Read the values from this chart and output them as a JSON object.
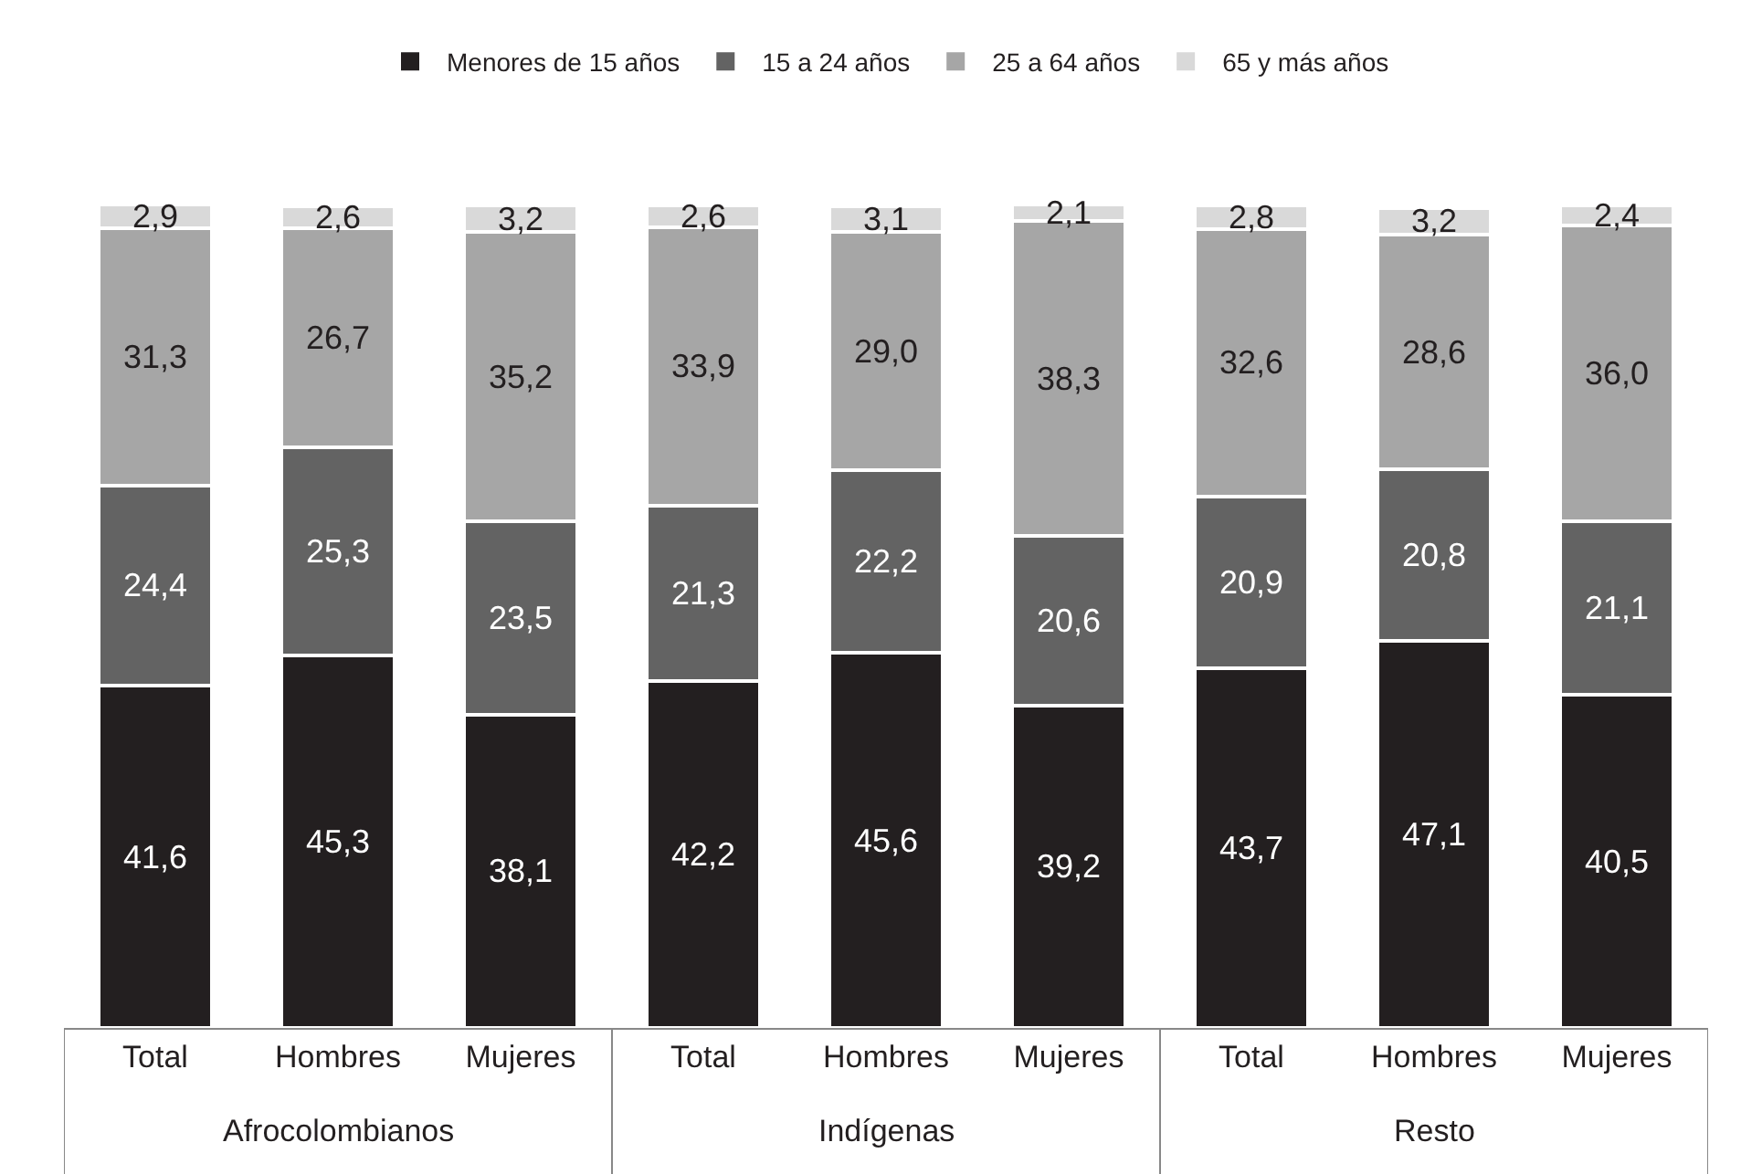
{
  "chart_data": {
    "type": "bar",
    "stacked": true,
    "legend": "top",
    "categories": [
      "Total",
      "Hombres",
      "Mujeres",
      "Total",
      "Hombres",
      "Mujeres",
      "Total",
      "Hombres",
      "Mujeres"
    ],
    "annotations": [
      "Afrocolombianos",
      "Indígenas",
      "Resto"
    ],
    "series": [
      {
        "name": "Menores de 15 años",
        "color": "#231f20",
        "values": [
          41.6,
          45.3,
          38.1,
          42.2,
          45.6,
          39.2,
          43.7,
          47.1,
          40.5
        ],
        "value_labels": [
          "41,6",
          "45,3",
          "38,1",
          "42,2",
          "45,6",
          "39,2",
          "43,7",
          "47,1",
          "40,5"
        ]
      },
      {
        "name": "15 a 24 años",
        "color": "#636363",
        "values": [
          24.4,
          25.3,
          23.5,
          21.3,
          22.2,
          20.6,
          20.9,
          20.8,
          21.1
        ],
        "value_labels": [
          "24,4",
          "25,3",
          "23,5",
          "21,3",
          "22,2",
          "20,6",
          "20,9",
          "20,8",
          "21,1"
        ]
      },
      {
        "name": "25 a 64 años",
        "color": "#a6a6a6",
        "values": [
          31.3,
          26.7,
          35.2,
          33.9,
          29.0,
          38.3,
          32.6,
          28.6,
          36.0
        ],
        "value_labels": [
          "31,3",
          "26,7",
          "35,2",
          "33,9",
          "29,0",
          "38,3",
          "32,6",
          "28,6",
          "36,0"
        ]
      },
      {
        "name": "65 y más años",
        "color": "#d9d9d9",
        "values": [
          2.9,
          2.6,
          3.2,
          2.6,
          3.1,
          2.1,
          2.8,
          3.2,
          2.4
        ],
        "value_labels": [
          "2,9",
          "2,6",
          "3,2",
          "2,6",
          "3,1",
          "2,1",
          "2,8",
          "3,2",
          "2,4"
        ]
      }
    ]
  }
}
